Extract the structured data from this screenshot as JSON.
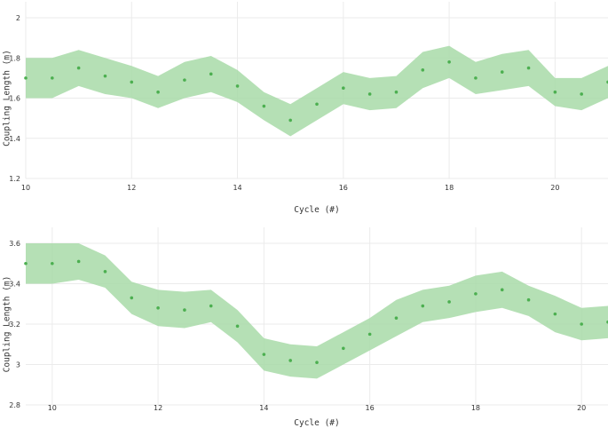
{
  "chart_data": [
    {
      "type": "line",
      "title": "",
      "xlabel": "Cycle (#)",
      "ylabel": "Coupling Length (m)",
      "xlim": [
        10,
        21
      ],
      "ylim": [
        1.2,
        2.0
      ],
      "xticks": [
        10,
        12,
        14,
        16,
        18,
        20
      ],
      "yticks": [
        1.2,
        1.4,
        1.6,
        1.8,
        2.0
      ],
      "xtick_labels": [
        "10",
        "12",
        "14",
        "16",
        "18",
        "20"
      ],
      "ytick_labels": [
        "1.2",
        "1.4",
        "1.6",
        "1.8",
        "2"
      ],
      "grid": true,
      "colors": {
        "band": "#a8dba8",
        "point": "#4caf50"
      },
      "series": [
        {
          "x": [
            10,
            10.5,
            11,
            11.5,
            12,
            12.5,
            13,
            13.5,
            14,
            14.5,
            15,
            15.5,
            16,
            16.5,
            17,
            17.5,
            18,
            18.5,
            19,
            19.5,
            20,
            20.5,
            21
          ],
          "values": [
            1.7,
            1.7,
            1.75,
            1.71,
            1.68,
            1.63,
            1.69,
            1.72,
            1.66,
            1.56,
            1.49,
            1.57,
            1.65,
            1.62,
            1.63,
            1.74,
            1.78,
            1.7,
            1.73,
            1.75,
            1.63,
            1.62,
            1.68
          ],
          "lower": [
            1.6,
            1.6,
            1.66,
            1.62,
            1.6,
            1.55,
            1.6,
            1.63,
            1.58,
            1.49,
            1.41,
            1.49,
            1.57,
            1.54,
            1.55,
            1.65,
            1.7,
            1.62,
            1.64,
            1.66,
            1.56,
            1.54,
            1.6
          ],
          "upper": [
            1.8,
            1.8,
            1.84,
            1.8,
            1.76,
            1.71,
            1.78,
            1.81,
            1.74,
            1.63,
            1.57,
            1.65,
            1.73,
            1.7,
            1.71,
            1.83,
            1.86,
            1.78,
            1.82,
            1.84,
            1.7,
            1.7,
            1.76
          ]
        }
      ]
    },
    {
      "type": "line",
      "title": "",
      "xlabel": "Cycle (#)",
      "ylabel": "Coupling Length (m)",
      "xlim": [
        9.5,
        20.5
      ],
      "ylim": [
        2.8,
        3.6
      ],
      "xticks": [
        10,
        12,
        14,
        16,
        18,
        20
      ],
      "yticks": [
        2.8,
        3.0,
        3.2,
        3.4,
        3.6
      ],
      "xtick_labels": [
        "10",
        "12",
        "14",
        "16",
        "18",
        "20"
      ],
      "ytick_labels": [
        "2.8",
        "3",
        "3.2",
        "3.4",
        "3.6"
      ],
      "grid": true,
      "colors": {
        "band": "#a8dba8",
        "point": "#4caf50"
      },
      "series": [
        {
          "x": [
            9.5,
            10,
            10.5,
            11,
            11.5,
            12,
            12.5,
            13,
            13.5,
            14,
            14.5,
            15,
            15.5,
            16,
            16.5,
            17,
            17.5,
            18,
            18.5,
            19,
            19.5,
            20,
            20.5
          ],
          "values": [
            3.5,
            3.5,
            3.51,
            3.46,
            3.33,
            3.28,
            3.27,
            3.29,
            3.19,
            3.05,
            3.02,
            3.01,
            3.08,
            3.15,
            3.23,
            3.29,
            3.31,
            3.35,
            3.37,
            3.32,
            3.25,
            3.2,
            3.21
          ],
          "lower": [
            3.4,
            3.4,
            3.42,
            3.38,
            3.25,
            3.19,
            3.18,
            3.21,
            3.11,
            2.97,
            2.94,
            2.93,
            3.0,
            3.07,
            3.14,
            3.21,
            3.23,
            3.26,
            3.28,
            3.24,
            3.16,
            3.12,
            3.13
          ],
          "upper": [
            3.6,
            3.6,
            3.6,
            3.54,
            3.41,
            3.37,
            3.36,
            3.37,
            3.27,
            3.13,
            3.1,
            3.09,
            3.16,
            3.23,
            3.32,
            3.37,
            3.39,
            3.44,
            3.46,
            3.39,
            3.34,
            3.28,
            3.29
          ]
        }
      ]
    }
  ]
}
